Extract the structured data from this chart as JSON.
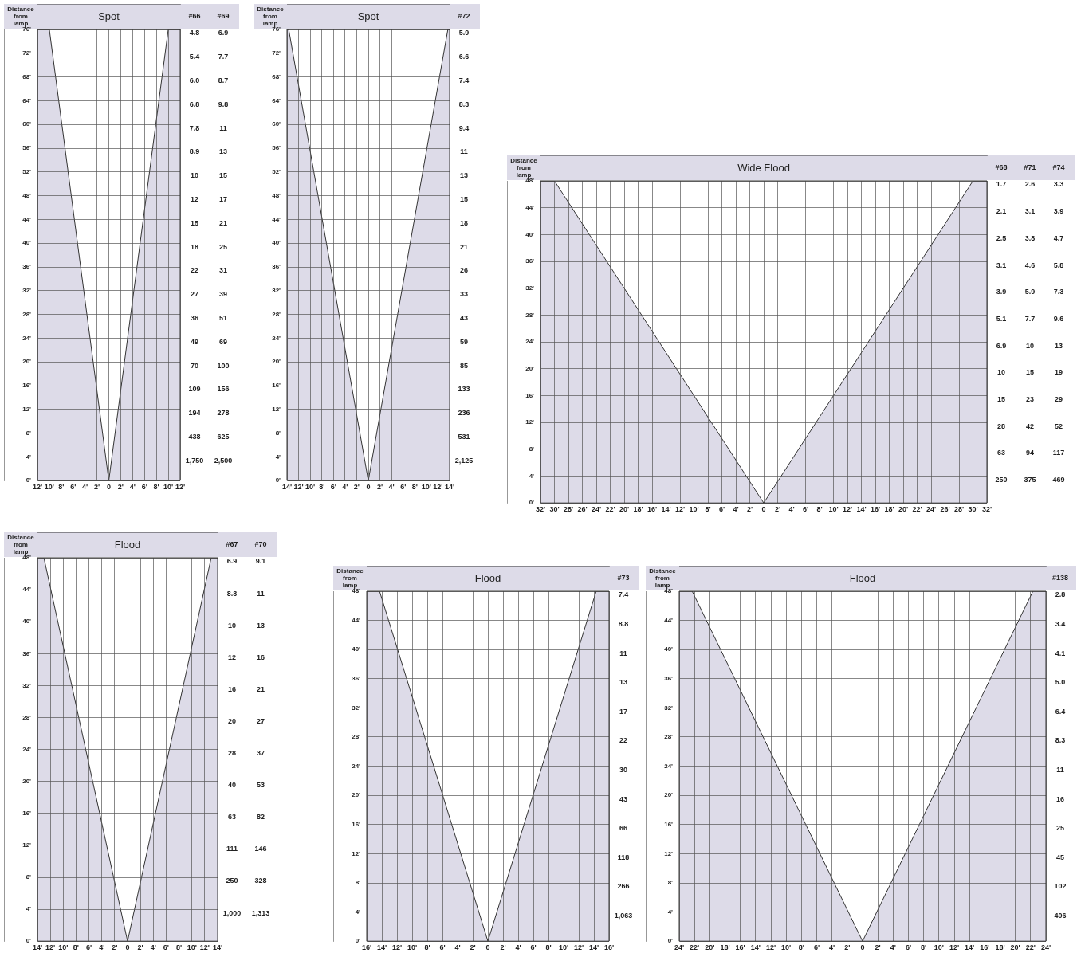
{
  "chart_data": [
    {
      "type": "area",
      "title": "Spot",
      "ylabel": "Distance from lamp",
      "xlim": [
        -12,
        12
      ],
      "xticks": [
        {
          "value": -12,
          "label": "12'"
        },
        {
          "value": -10,
          "label": "10'"
        },
        {
          "value": -8,
          "label": "8'"
        },
        {
          "value": -6,
          "label": "6'"
        },
        {
          "value": -4,
          "label": "4'"
        },
        {
          "value": -2,
          "label": "2'"
        },
        {
          "value": 0,
          "label": "0"
        },
        {
          "value": 2,
          "label": "2'"
        },
        {
          "value": 4,
          "label": "4'"
        },
        {
          "value": 6,
          "label": "6'"
        },
        {
          "value": 8,
          "label": "8'"
        },
        {
          "value": 10,
          "label": "10'"
        },
        {
          "value": 12,
          "label": "12'"
        }
      ],
      "ylim": [
        0,
        76
      ],
      "yticks": [
        {
          "value": 0,
          "label": "0'"
        },
        {
          "value": 4,
          "label": "4'"
        },
        {
          "value": 8,
          "label": "8'"
        },
        {
          "value": 12,
          "label": "12'"
        },
        {
          "value": 16,
          "label": "16'"
        },
        {
          "value": 20,
          "label": "20'"
        },
        {
          "value": 24,
          "label": "24'"
        },
        {
          "value": 28,
          "label": "28'"
        },
        {
          "value": 32,
          "label": "32'"
        },
        {
          "value": 36,
          "label": "36'"
        },
        {
          "value": 40,
          "label": "40'"
        },
        {
          "value": 44,
          "label": "44'"
        },
        {
          "value": 48,
          "label": "48'"
        },
        {
          "value": 52,
          "label": "52'"
        },
        {
          "value": 56,
          "label": "56'"
        },
        {
          "value": 60,
          "label": "60'"
        },
        {
          "value": 64,
          "label": "64'"
        },
        {
          "value": 68,
          "label": "68'"
        },
        {
          "value": 72,
          "label": "72'"
        },
        {
          "value": 76,
          "label": "76'"
        }
      ],
      "grid": true,
      "series": [
        {
          "color": "#dddbe8",
          "x": [
            -12,
            -10,
            0,
            10,
            12
          ],
          "values": [
            76,
            76,
            0,
            76,
            76
          ]
        }
      ],
      "annotations": [
        "#66",
        "4.8",
        "5.4",
        "6.0",
        "6.8",
        "7.8",
        "8.9",
        "10",
        "12",
        "15",
        "18",
        "22",
        "27",
        "36",
        "49",
        "70",
        "109",
        "194",
        "438",
        "1,750",
        "#69",
        "6.9",
        "7.7",
        "8.7",
        "9.8",
        "11",
        "13",
        "15",
        "17",
        "21",
        "25",
        "31",
        "39",
        "51",
        "69",
        "100",
        "156",
        "278",
        "625",
        "2,500"
      ]
    },
    {
      "type": "area",
      "title": "Spot",
      "ylabel": "Distance from lamp",
      "xlim": [
        -14,
        14
      ],
      "xticks": [
        {
          "value": -14,
          "label": "14'"
        },
        {
          "value": -12,
          "label": "12'"
        },
        {
          "value": -10,
          "label": "10'"
        },
        {
          "value": -8,
          "label": "8'"
        },
        {
          "value": -6,
          "label": "6'"
        },
        {
          "value": -4,
          "label": "4'"
        },
        {
          "value": -2,
          "label": "2'"
        },
        {
          "value": 0,
          "label": "0"
        },
        {
          "value": 2,
          "label": "2'"
        },
        {
          "value": 4,
          "label": "4'"
        },
        {
          "value": 6,
          "label": "6'"
        },
        {
          "value": 8,
          "label": "8'"
        },
        {
          "value": 10,
          "label": "10'"
        },
        {
          "value": 12,
          "label": "12'"
        },
        {
          "value": 14,
          "label": "14'"
        }
      ],
      "ylim": [
        0,
        76
      ],
      "yticks": [
        {
          "value": 0,
          "label": "0'"
        },
        {
          "value": 4,
          "label": "4'"
        },
        {
          "value": 8,
          "label": "8'"
        },
        {
          "value": 12,
          "label": "12'"
        },
        {
          "value": 16,
          "label": "16'"
        },
        {
          "value": 20,
          "label": "20'"
        },
        {
          "value": 24,
          "label": "24'"
        },
        {
          "value": 28,
          "label": "28'"
        },
        {
          "value": 32,
          "label": "32'"
        },
        {
          "value": 36,
          "label": "36'"
        },
        {
          "value": 40,
          "label": "40'"
        },
        {
          "value": 44,
          "label": "44'"
        },
        {
          "value": 48,
          "label": "48'"
        },
        {
          "value": 52,
          "label": "52'"
        },
        {
          "value": 56,
          "label": "56'"
        },
        {
          "value": 60,
          "label": "60'"
        },
        {
          "value": 64,
          "label": "64'"
        },
        {
          "value": 68,
          "label": "68'"
        },
        {
          "value": 72,
          "label": "72'"
        },
        {
          "value": 76,
          "label": "76'"
        }
      ],
      "grid": true,
      "series": [
        {
          "color": "#dddbe8",
          "x": [
            -14,
            -13.7,
            0,
            13.7,
            14
          ],
          "values": [
            76,
            76,
            0,
            76,
            76
          ]
        }
      ],
      "annotations": [
        "#72",
        "5.9",
        "6.6",
        "7.4",
        "8.3",
        "9.4",
        "11",
        "13",
        "15",
        "18",
        "21",
        "26",
        "33",
        "43",
        "59",
        "85",
        "133",
        "236",
        "531",
        "2,125"
      ]
    },
    {
      "type": "area",
      "title": "Wide Flood",
      "ylabel": "Distance from lamp",
      "xlim": [
        -32,
        32
      ],
      "xticks": [
        {
          "value": -32,
          "label": "32'"
        },
        {
          "value": -30,
          "label": "30'"
        },
        {
          "value": -28,
          "label": "28'"
        },
        {
          "value": -26,
          "label": "26'"
        },
        {
          "value": -24,
          "label": "24'"
        },
        {
          "value": -22,
          "label": "22'"
        },
        {
          "value": -20,
          "label": "20'"
        },
        {
          "value": -18,
          "label": "18'"
        },
        {
          "value": -16,
          "label": "16'"
        },
        {
          "value": -14,
          "label": "14'"
        },
        {
          "value": -12,
          "label": "12'"
        },
        {
          "value": -10,
          "label": "10'"
        },
        {
          "value": -8,
          "label": "8'"
        },
        {
          "value": -6,
          "label": "6'"
        },
        {
          "value": -4,
          "label": "4'"
        },
        {
          "value": -2,
          "label": "2'"
        },
        {
          "value": 0,
          "label": "0"
        },
        {
          "value": 2,
          "label": "2'"
        },
        {
          "value": 4,
          "label": "4'"
        },
        {
          "value": 6,
          "label": "6'"
        },
        {
          "value": 8,
          "label": "8'"
        },
        {
          "value": 10,
          "label": "10'"
        },
        {
          "value": 12,
          "label": "12'"
        },
        {
          "value": 14,
          "label": "14'"
        },
        {
          "value": 16,
          "label": "16'"
        },
        {
          "value": 18,
          "label": "18'"
        },
        {
          "value": 20,
          "label": "20'"
        },
        {
          "value": 22,
          "label": "22'"
        },
        {
          "value": 24,
          "label": "24'"
        },
        {
          "value": 26,
          "label": "26'"
        },
        {
          "value": 28,
          "label": "28'"
        },
        {
          "value": 30,
          "label": "30'"
        },
        {
          "value": 32,
          "label": "32'"
        }
      ],
      "ylim": [
        0,
        48
      ],
      "yticks": [
        {
          "value": 0,
          "label": "0'"
        },
        {
          "value": 4,
          "label": "4'"
        },
        {
          "value": 8,
          "label": "8'"
        },
        {
          "value": 12,
          "label": "12'"
        },
        {
          "value": 16,
          "label": "16'"
        },
        {
          "value": 20,
          "label": "20'"
        },
        {
          "value": 24,
          "label": "24'"
        },
        {
          "value": 28,
          "label": "28'"
        },
        {
          "value": 32,
          "label": "32'"
        },
        {
          "value": 36,
          "label": "36'"
        },
        {
          "value": 40,
          "label": "40'"
        },
        {
          "value": 44,
          "label": "44'"
        },
        {
          "value": 48,
          "label": "48'"
        }
      ],
      "grid": true,
      "series": [
        {
          "color": "#dddbe8",
          "x": [
            -32,
            -30,
            0,
            30,
            32
          ],
          "values": [
            48,
            48,
            0,
            48,
            48
          ]
        }
      ],
      "annotations": [
        "#68",
        "1.7",
        "2.1",
        "2.5",
        "3.1",
        "3.9",
        "5.1",
        "6.9",
        "10",
        "15",
        "28",
        "63",
        "250",
        "#71",
        "2.6",
        "3.1",
        "3.8",
        "4.6",
        "5.9",
        "7.7",
        "10",
        "15",
        "23",
        "42",
        "94",
        "375",
        "#74",
        "3.3",
        "3.9",
        "4.7",
        "5.8",
        "7.3",
        "9.6",
        "13",
        "19",
        "29",
        "52",
        "117",
        "469"
      ]
    },
    {
      "type": "area",
      "title": "Flood",
      "ylabel": "Distance from lamp",
      "xlim": [
        -14,
        14
      ],
      "xticks": [
        {
          "value": -14,
          "label": "14'"
        },
        {
          "value": -12,
          "label": "12'"
        },
        {
          "value": -10,
          "label": "10'"
        },
        {
          "value": -8,
          "label": "8'"
        },
        {
          "value": -6,
          "label": "6'"
        },
        {
          "value": -4,
          "label": "4'"
        },
        {
          "value": -2,
          "label": "2'"
        },
        {
          "value": 0,
          "label": "0"
        },
        {
          "value": 2,
          "label": "2'"
        },
        {
          "value": 4,
          "label": "4'"
        },
        {
          "value": 6,
          "label": "6'"
        },
        {
          "value": 8,
          "label": "8'"
        },
        {
          "value": 10,
          "label": "10'"
        },
        {
          "value": 12,
          "label": "12'"
        },
        {
          "value": 14,
          "label": "14'"
        }
      ],
      "ylim": [
        0,
        48
      ],
      "yticks": [
        {
          "value": 0,
          "label": "0'"
        },
        {
          "value": 4,
          "label": "4'"
        },
        {
          "value": 8,
          "label": "8'"
        },
        {
          "value": 12,
          "label": "12'"
        },
        {
          "value": 16,
          "label": "16'"
        },
        {
          "value": 20,
          "label": "20'"
        },
        {
          "value": 24,
          "label": "24'"
        },
        {
          "value": 28,
          "label": "28'"
        },
        {
          "value": 32,
          "label": "32'"
        },
        {
          "value": 36,
          "label": "36'"
        },
        {
          "value": 40,
          "label": "40'"
        },
        {
          "value": 44,
          "label": "44'"
        },
        {
          "value": 48,
          "label": "48'"
        }
      ],
      "grid": true,
      "series": [
        {
          "color": "#dddbe8",
          "x": [
            -14,
            -13,
            0,
            13,
            14
          ],
          "values": [
            48,
            48,
            0,
            48,
            48
          ]
        }
      ],
      "annotations": [
        "#67",
        "6.9",
        "8.3",
        "10",
        "12",
        "16",
        "20",
        "28",
        "40",
        "63",
        "111",
        "250",
        "1,000",
        "#70",
        "9.1",
        "11",
        "13",
        "16",
        "21",
        "27",
        "37",
        "53",
        "82",
        "146",
        "328",
        "1,313"
      ]
    },
    {
      "type": "area",
      "title": "Flood",
      "ylabel": "Distance from lamp",
      "xlim": [
        -16,
        16
      ],
      "xticks": [
        {
          "value": -16,
          "label": "16'"
        },
        {
          "value": -14,
          "label": "14'"
        },
        {
          "value": -12,
          "label": "12'"
        },
        {
          "value": -10,
          "label": "10'"
        },
        {
          "value": -8,
          "label": "8'"
        },
        {
          "value": -6,
          "label": "6'"
        },
        {
          "value": -4,
          "label": "4'"
        },
        {
          "value": -2,
          "label": "2'"
        },
        {
          "value": 0,
          "label": "0"
        },
        {
          "value": 2,
          "label": "2'"
        },
        {
          "value": 4,
          "label": "4'"
        },
        {
          "value": 6,
          "label": "6'"
        },
        {
          "value": 8,
          "label": "8'"
        },
        {
          "value": 10,
          "label": "10'"
        },
        {
          "value": 12,
          "label": "12'"
        },
        {
          "value": 14,
          "label": "14'"
        },
        {
          "value": 16,
          "label": "16'"
        }
      ],
      "ylim": [
        0,
        48
      ],
      "yticks": [
        {
          "value": 0,
          "label": "0'"
        },
        {
          "value": 4,
          "label": "4'"
        },
        {
          "value": 8,
          "label": "8'"
        },
        {
          "value": 12,
          "label": "12'"
        },
        {
          "value": 16,
          "label": "16'"
        },
        {
          "value": 20,
          "label": "20'"
        },
        {
          "value": 24,
          "label": "24'"
        },
        {
          "value": 28,
          "label": "28'"
        },
        {
          "value": 32,
          "label": "32'"
        },
        {
          "value": 36,
          "label": "36'"
        },
        {
          "value": 40,
          "label": "40'"
        },
        {
          "value": 44,
          "label": "44'"
        },
        {
          "value": 48,
          "label": "48'"
        }
      ],
      "grid": true,
      "series": [
        {
          "color": "#dddbe8",
          "x": [
            -16,
            -14.3,
            0,
            14.3,
            16
          ],
          "values": [
            48,
            48,
            0,
            48,
            48
          ]
        }
      ],
      "annotations": [
        "#73",
        "7.4",
        "8.8",
        "11",
        "13",
        "17",
        "22",
        "30",
        "43",
        "66",
        "118",
        "266",
        "1,063"
      ]
    },
    {
      "type": "area",
      "title": "Flood",
      "ylabel": "Distance from lamp",
      "xlim": [
        -24,
        24
      ],
      "xticks": [
        {
          "value": -24,
          "label": "24'"
        },
        {
          "value": -22,
          "label": "22'"
        },
        {
          "value": -20,
          "label": "20'"
        },
        {
          "value": -18,
          "label": "18'"
        },
        {
          "value": -16,
          "label": "16'"
        },
        {
          "value": -14,
          "label": "14'"
        },
        {
          "value": -12,
          "label": "12'"
        },
        {
          "value": -10,
          "label": "10'"
        },
        {
          "value": -8,
          "label": "8'"
        },
        {
          "value": -6,
          "label": "6'"
        },
        {
          "value": -4,
          "label": "4'"
        },
        {
          "value": -2,
          "label": "2'"
        },
        {
          "value": 0,
          "label": "0"
        },
        {
          "value": 2,
          "label": "2'"
        },
        {
          "value": 4,
          "label": "4'"
        },
        {
          "value": 6,
          "label": "6'"
        },
        {
          "value": 8,
          "label": "8'"
        },
        {
          "value": 10,
          "label": "10'"
        },
        {
          "value": 12,
          "label": "12'"
        },
        {
          "value": 14,
          "label": "14'"
        },
        {
          "value": 16,
          "label": "16'"
        },
        {
          "value": 18,
          "label": "18'"
        },
        {
          "value": 20,
          "label": "20'"
        },
        {
          "value": 22,
          "label": "22'"
        },
        {
          "value": 24,
          "label": "24'"
        }
      ],
      "ylim": [
        0,
        48
      ],
      "yticks": [
        {
          "value": 0,
          "label": "0'"
        },
        {
          "value": 4,
          "label": "4'"
        },
        {
          "value": 8,
          "label": "8'"
        },
        {
          "value": 12,
          "label": "12'"
        },
        {
          "value": 16,
          "label": "16'"
        },
        {
          "value": 20,
          "label": "20'"
        },
        {
          "value": 24,
          "label": "24'"
        },
        {
          "value": 28,
          "label": "28'"
        },
        {
          "value": 32,
          "label": "32'"
        },
        {
          "value": 36,
          "label": "36'"
        },
        {
          "value": 40,
          "label": "40'"
        },
        {
          "value": 44,
          "label": "44'"
        },
        {
          "value": 48,
          "label": "48'"
        }
      ],
      "grid": true,
      "series": [
        {
          "color": "#dddbe8",
          "x": [
            -24,
            -22.3,
            0,
            22.3,
            24
          ],
          "values": [
            48,
            48,
            0,
            48,
            48
          ]
        }
      ],
      "annotations": [
        "#138",
        "2.8",
        "3.4",
        "4.1",
        "5.0",
        "6.4",
        "8.3",
        "11",
        "16",
        "25",
        "45",
        "102",
        "406"
      ]
    }
  ]
}
